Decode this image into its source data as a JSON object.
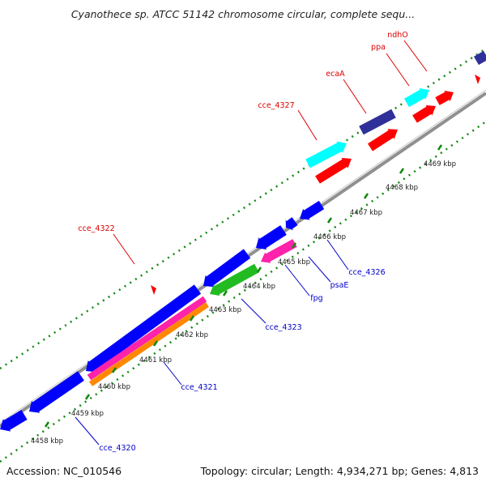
{
  "title": "Cyanothece sp. ATCC 51142 chromosome circular, complete sequ...",
  "footer": {
    "accession": "Accession: NC_010546",
    "topology": "Topology: circular; Length: 4,934,271 bp; Genes: 4,813"
  },
  "scale_ticks": [
    "4458 kbp",
    "4459 kbp",
    "4460 kbp",
    "4461 kbp",
    "4462 kbp",
    "4463 kbp",
    "4464 kbp",
    "4465 kbp",
    "4466 kbp",
    "4467 kbp",
    "4468 kbp",
    "4469 kbp"
  ],
  "gene_labels": [
    {
      "text": "ndhO",
      "color": "#dd0000"
    },
    {
      "text": "ppa",
      "color": "#dd0000"
    },
    {
      "text": "ecaA",
      "color": "#dd0000"
    },
    {
      "text": "cce_4327",
      "color": "#dd0000"
    },
    {
      "text": "cce_4322",
      "color": "#dd0000"
    },
    {
      "text": "cce_4326",
      "color": "#0000cc"
    },
    {
      "text": "psaE",
      "color": "#0000cc"
    },
    {
      "text": "fpg",
      "color": "#0000cc"
    },
    {
      "text": "cce_4323",
      "color": "#0000cc"
    },
    {
      "text": "cce_4321",
      "color": "#0000cc"
    },
    {
      "text": "cce_4320",
      "color": "#0000cc"
    }
  ],
  "colors": {
    "forward_cds": "#ff0000",
    "reverse_cds": "#0000ff",
    "trna": "#00ffff",
    "rrna": "#30309a",
    "gene_pink": "#ff22aa",
    "gene_green": "#22bb22",
    "gene_orange": "#ff8800",
    "backbone": "#909090",
    "tick": "#118811"
  }
}
